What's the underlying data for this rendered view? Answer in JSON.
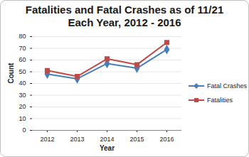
{
  "chart_data": {
    "type": "line",
    "title": "Fatalities and Fatal Crashes as of 11/21 Each Year, 2012 - 2016",
    "x_label": "Year",
    "y_label": "Count",
    "categories": [
      "2012",
      "2013",
      "2014",
      "2015",
      "2016"
    ],
    "series": [
      {
        "name": "Fatal Crashes",
        "color": "#4a7ebb",
        "marker": "diamond",
        "values": [
          48,
          44,
          57,
          53,
          69
        ]
      },
      {
        "name": "Fatalities",
        "color": "#be4b48",
        "marker": "square",
        "values": [
          51,
          46,
          61,
          56,
          75
        ]
      }
    ],
    "ylim": [
      0,
      80
    ],
    "yticks": [
      0,
      10,
      20,
      30,
      40,
      50,
      60,
      70,
      80
    ],
    "grid": true,
    "legend": "right"
  }
}
